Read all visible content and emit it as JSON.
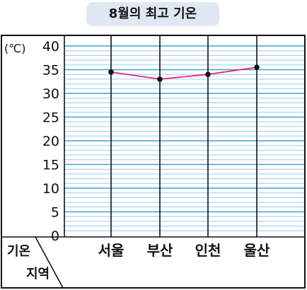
{
  "chart_data": {
    "type": "line",
    "title": "8월의 최고 기온",
    "ylabel": "(℃)",
    "xlabel": "지역",
    "corner_label_top": "기온",
    "corner_label_bottom": "지역",
    "categories": [
      "서울",
      "부산",
      "인천",
      "울산"
    ],
    "values": [
      34.5,
      33.0,
      34.0,
      35.5
    ],
    "ylim": [
      0,
      40
    ],
    "yticks": [
      0,
      5,
      10,
      15,
      20,
      25,
      30,
      35,
      40
    ],
    "minor_step": 1,
    "grid": true,
    "colors": {
      "line": "#e6287a",
      "point": "#111111",
      "major_grid": "#3ea0d8",
      "minor_grid": "#9bcde9",
      "frame": "#111111",
      "title_bg": "#dfe8f2"
    }
  }
}
